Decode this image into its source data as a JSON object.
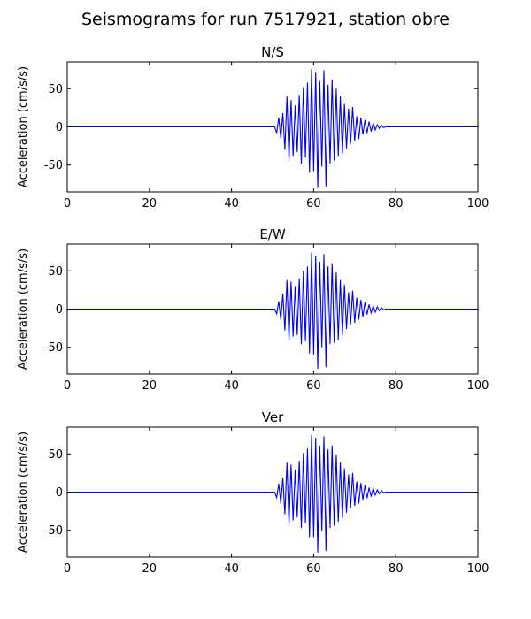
{
  "figure": {
    "title": "Seismograms for run 7517921, station obre"
  },
  "chart_data": [
    {
      "type": "line",
      "title": "N/S",
      "xlabel": "",
      "ylabel": "Acceleration (cm/s/s)",
      "xlim": [
        0,
        100
      ],
      "ylim": [
        -85,
        85
      ],
      "xticks": [
        0,
        20,
        40,
        60,
        80,
        100
      ],
      "yticks": [
        50,
        0,
        -50
      ],
      "grid": false,
      "line_color": "#0000ff",
      "series": [
        {
          "x": [
            0,
            50.5,
            51,
            51.5,
            52,
            52.5,
            53,
            53.5,
            54,
            54.5,
            55,
            55.5,
            56,
            56.5,
            57,
            57.5,
            58,
            58.5,
            59,
            59.5,
            60,
            60.5,
            61,
            61.5,
            62,
            62.5,
            63,
            63.5,
            64,
            64.5,
            65,
            65.5,
            66,
            66.5,
            67,
            67.5,
            68,
            68.5,
            69,
            69.5,
            70,
            70.5,
            71,
            71.5,
            72,
            72.5,
            73,
            73.5,
            74,
            74.5,
            75,
            75.5,
            76,
            76.5,
            77,
            77.5,
            100
          ],
          "values": [
            0,
            0,
            -8,
            12,
            -15,
            18,
            -30,
            40,
            -45,
            35,
            -38,
            28,
            -33,
            42,
            -48,
            52,
            -40,
            58,
            -60,
            76,
            -58,
            72,
            -80,
            60,
            -52,
            74,
            -78,
            55,
            -48,
            62,
            -44,
            50,
            -38,
            40,
            -35,
            30,
            -28,
            24,
            -22,
            26,
            -18,
            14,
            -16,
            12,
            -10,
            9,
            -8,
            7,
            -6,
            5,
            -4,
            3,
            -2,
            2,
            -1,
            0,
            0
          ]
        }
      ]
    },
    {
      "type": "line",
      "title": "E/W",
      "xlabel": "",
      "ylabel": "Acceleration (cm/s/s)",
      "xlim": [
        0,
        100
      ],
      "ylim": [
        -85,
        85
      ],
      "xticks": [
        0,
        20,
        40,
        60,
        80,
        100
      ],
      "yticks": [
        50,
        0,
        -50
      ],
      "grid": false,
      "line_color": "#0000ff",
      "series": [
        {
          "x": [
            0,
            50.5,
            51,
            51.5,
            52,
            52.5,
            53,
            53.5,
            54,
            54.5,
            55,
            55.5,
            56,
            56.5,
            57,
            57.5,
            58,
            58.5,
            59,
            59.5,
            60,
            60.5,
            61,
            61.5,
            62,
            62.5,
            63,
            63.5,
            64,
            64.5,
            65,
            65.5,
            66,
            66.5,
            67,
            67.5,
            68,
            68.5,
            69,
            69.5,
            70,
            70.5,
            71,
            71.5,
            72,
            72.5,
            73,
            73.5,
            74,
            74.5,
            75,
            75.5,
            76,
            76.5,
            77,
            77.5,
            100
          ],
          "values": [
            0,
            0,
            -6,
            10,
            -14,
            20,
            -28,
            38,
            -42,
            36,
            -36,
            30,
            -34,
            40,
            -46,
            50,
            -42,
            56,
            -58,
            74,
            -60,
            70,
            -78,
            62,
            -50,
            72,
            -76,
            56,
            -46,
            60,
            -44,
            48,
            -40,
            38,
            -34,
            32,
            -26,
            22,
            -20,
            24,
            -18,
            15,
            -14,
            12,
            -10,
            9,
            -7,
            6,
            -5,
            4,
            -4,
            3,
            -2,
            2,
            -1,
            0,
            0
          ]
        }
      ]
    },
    {
      "type": "line",
      "title": "Ver",
      "xlabel": "",
      "ylabel": "Acceleration (cm/s/s)",
      "xlim": [
        0,
        100
      ],
      "ylim": [
        -85,
        85
      ],
      "xticks": [
        0,
        20,
        40,
        60,
        80,
        100
      ],
      "yticks": [
        50,
        0,
        -50
      ],
      "grid": false,
      "line_color": "#0000ff",
      "series": [
        {
          "x": [
            0,
            50.5,
            51,
            51.5,
            52,
            52.5,
            53,
            53.5,
            54,
            54.5,
            55,
            55.5,
            56,
            56.5,
            57,
            57.5,
            58,
            58.5,
            59,
            59.5,
            60,
            60.5,
            61,
            61.5,
            62,
            62.5,
            63,
            63.5,
            64,
            64.5,
            65,
            65.5,
            66,
            66.5,
            67,
            67.5,
            68,
            68.5,
            69,
            69.5,
            70,
            70.5,
            71,
            71.5,
            72,
            72.5,
            73,
            73.5,
            74,
            74.5,
            75,
            75.5,
            76,
            76.5,
            77,
            77.5,
            100
          ],
          "values": [
            0,
            0,
            -7,
            11,
            -15,
            19,
            -29,
            39,
            -44,
            36,
            -37,
            29,
            -33,
            41,
            -47,
            51,
            -41,
            57,
            -59,
            75,
            -59,
            71,
            -79,
            61,
            -51,
            73,
            -77,
            56,
            -47,
            61,
            -44,
            49,
            -39,
            39,
            -34,
            31,
            -27,
            23,
            -21,
            25,
            -18,
            14,
            -15,
            12,
            -10,
            9,
            -8,
            6,
            -6,
            5,
            -4,
            3,
            -2,
            2,
            -1,
            0,
            0
          ]
        }
      ]
    }
  ]
}
